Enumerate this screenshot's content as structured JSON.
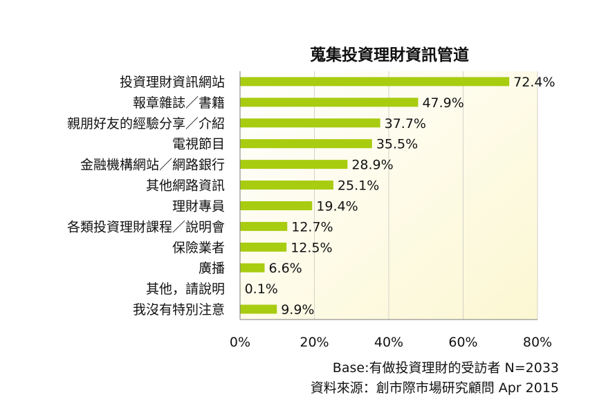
{
  "chart_data": {
    "type": "bar",
    "orientation": "horizontal",
    "title": "蒐集投資理財資訊管道",
    "categories": [
      "投資理財資訊網站",
      "報章雜誌／書籍",
      "親朋好友的經驗分享／介紹",
      "電視節目",
      "金融機構網站／網路銀行",
      "其他網路資訊",
      "理財專員",
      "各類投資理財課程／說明會",
      "保險業者",
      "廣播",
      "其他，請說明",
      "我沒有特別注意"
    ],
    "values": [
      72.4,
      47.9,
      37.7,
      35.5,
      28.9,
      25.1,
      19.4,
      12.7,
      12.5,
      6.6,
      0.1,
      9.9
    ],
    "value_labels": [
      "72.4%",
      "47.9%",
      "37.7%",
      "35.5%",
      "28.9%",
      "25.1%",
      "19.4%",
      "12.7%",
      "12.5%",
      "6.6%",
      "0.1%",
      "9.9%"
    ],
    "xlim": [
      0,
      80
    ],
    "xticks": [
      0,
      20,
      40,
      60,
      80
    ],
    "xtick_labels": [
      "0%",
      "20%",
      "40%",
      "60%",
      "80%"
    ],
    "grid": true,
    "legend": "none",
    "colors": {
      "bar": "#a8cc10",
      "plot_bg_start": "#ffffff",
      "plot_bg_end": "#fcf7d2",
      "grid": "#d2d2c8"
    }
  },
  "footnotes": {
    "base": "Base:有做投資理財的受訪者 N=2033",
    "source": "資料來源：創市際市場研究顧問 Apr 2015"
  }
}
